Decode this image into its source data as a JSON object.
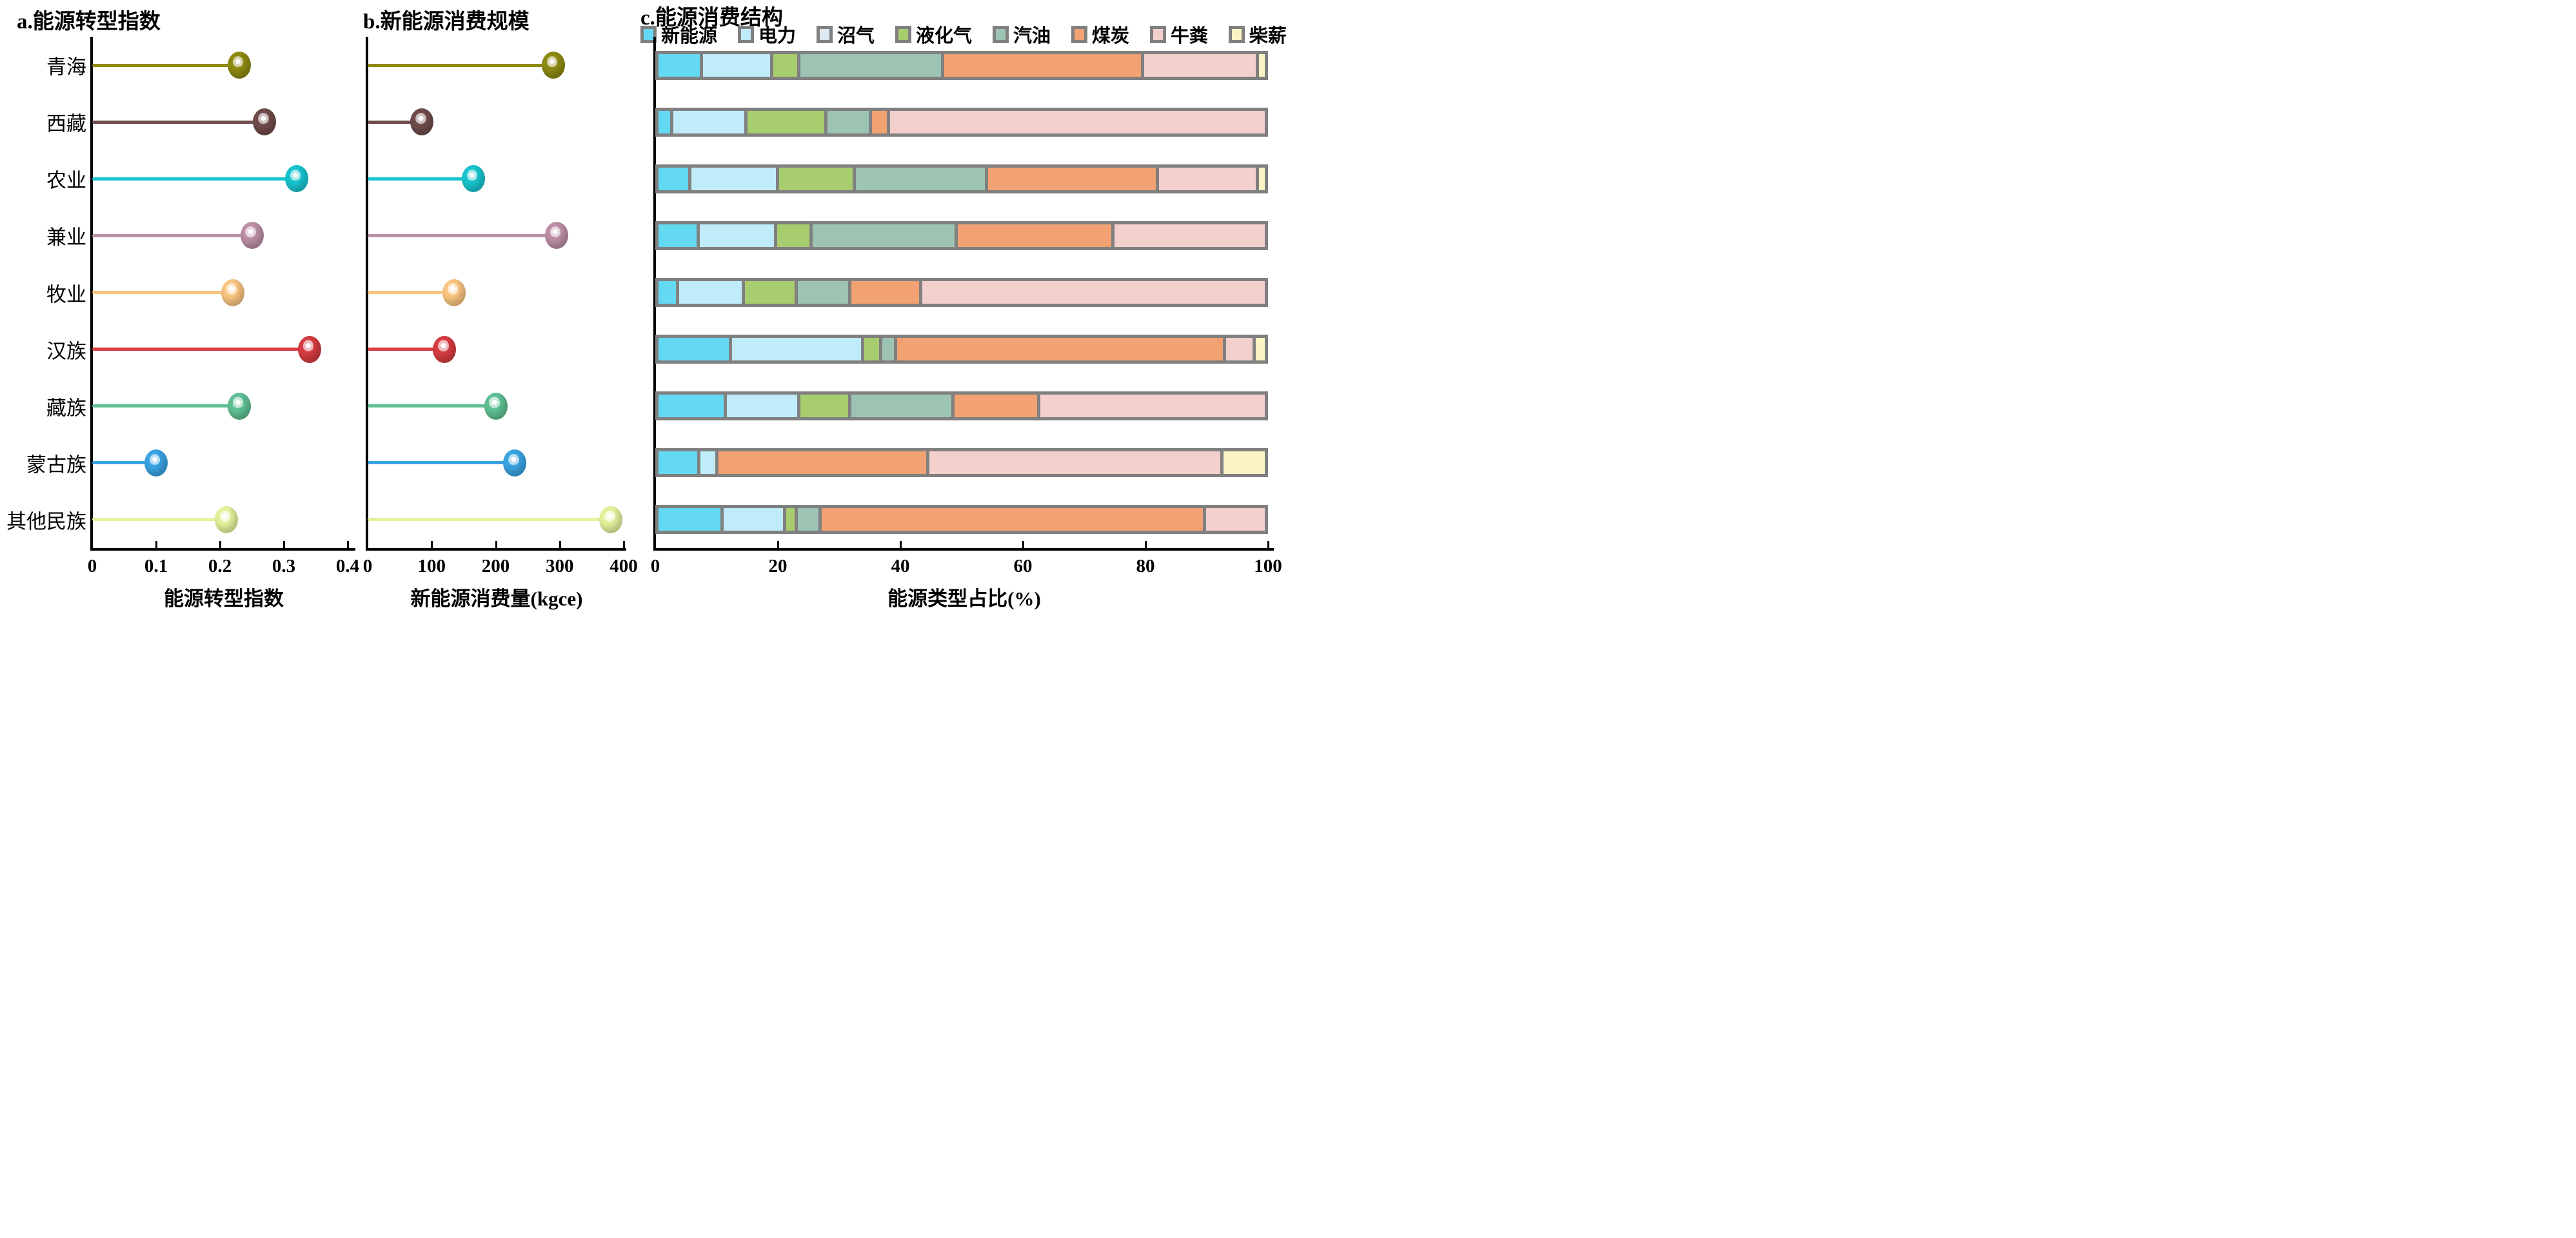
{
  "figure": {
    "background": "#ffffff",
    "axis_color": "#000000",
    "bar_border_color": "#808080"
  },
  "categories": [
    "青海",
    "西藏",
    "农业",
    "兼业",
    "牧业",
    "汉族",
    "藏族",
    "蒙古族",
    "其他民族"
  ],
  "panel_a": {
    "title": "a.能源转型指数",
    "xlabel": "能源转型指数",
    "tick_labels": [
      "0",
      "0.1",
      "0.2",
      "0.3",
      "0.4"
    ]
  },
  "panel_b": {
    "title": "b.新能源消费规模",
    "xlabel": "新能源消费量(kgce)",
    "tick_labels": [
      "0",
      "100",
      "200",
      "300",
      "400"
    ]
  },
  "panel_c": {
    "title": "c.能源消费结构",
    "xlabel": "能源类型占比(%)",
    "tick_labels": [
      "0",
      "20",
      "40",
      "60",
      "80",
      "100"
    ],
    "legend_labels": [
      "新能源",
      "电力",
      "沼气",
      "液化气",
      "汽油",
      "煤炭",
      "牛粪",
      "柴薪"
    ],
    "legend_colors": [
      "#63d9f2",
      "#c0ecfa",
      "#dfe9f1",
      "#a8cd6e",
      "#9dc4b2",
      "#f2a172",
      "#f4d0cd",
      "#faf3c4"
    ]
  },
  "chart_data": [
    {
      "id": "a",
      "type": "scatter",
      "subtype": "lollipop",
      "title": "a.能源转型指数",
      "xlabel": "能源转型指数",
      "xlim": [
        0,
        0.4
      ],
      "xticks": [
        0,
        0.1,
        0.2,
        0.3,
        0.4
      ],
      "categories": [
        "青海",
        "西藏",
        "农业",
        "兼业",
        "牧业",
        "汉族",
        "藏族",
        "蒙古族",
        "其他民族"
      ],
      "values": [
        0.23,
        0.27,
        0.32,
        0.25,
        0.22,
        0.34,
        0.23,
        0.1,
        0.21
      ],
      "colors": [
        "#8f8a12",
        "#6f4b4b",
        "#18c5cf",
        "#bd8fa6",
        "#f9c581",
        "#d63c41",
        "#5fc094",
        "#3aa3e2",
        "#e4f29c"
      ]
    },
    {
      "id": "b",
      "type": "scatter",
      "subtype": "lollipop",
      "title": "b.新能源消费规模",
      "xlabel": "新能源消费量(kgce)",
      "xlim": [
        0,
        400
      ],
      "xticks": [
        0,
        100,
        200,
        300,
        400
      ],
      "categories": [
        "青海",
        "西藏",
        "农业",
        "兼业",
        "牧业",
        "汉族",
        "藏族",
        "蒙古族",
        "其他民族"
      ],
      "values": [
        290,
        85,
        165,
        295,
        135,
        120,
        200,
        230,
        380
      ],
      "colors": [
        "#8f8a12",
        "#6f4b4b",
        "#18c5cf",
        "#bd8fa6",
        "#f9c581",
        "#d63c41",
        "#5fc094",
        "#3aa3e2",
        "#e4f29c"
      ]
    },
    {
      "id": "c",
      "type": "bar",
      "subtype": "stacked-horizontal",
      "title": "c.能源消费结构",
      "xlabel": "能源类型占比(%)",
      "xlim": [
        0,
        100
      ],
      "xticks": [
        0,
        20,
        40,
        60,
        80,
        100
      ],
      "categories": [
        "青海",
        "西藏",
        "农业",
        "兼业",
        "牧业",
        "汉族",
        "藏族",
        "蒙古族",
        "其他民族"
      ],
      "series_names": [
        "新能源",
        "电力",
        "沼气",
        "液化气",
        "汽油",
        "煤炭",
        "牛粪",
        "柴薪"
      ],
      "series_colors": [
        "#63d9f2",
        "#c0ecfa",
        "#dfe9f1",
        "#a8cd6e",
        "#9dc4b2",
        "#f2a172",
        "#f4d0cd",
        "#faf3c4"
      ],
      "rows_percent": [
        [
          7,
          11.5,
          0,
          4,
          24,
          33.5,
          19,
          1
        ],
        [
          2,
          12,
          0,
          13,
          7,
          2.5,
          63.5,
          0
        ],
        [
          5,
          14.5,
          0,
          12.5,
          22,
          28.5,
          16.5,
          1
        ],
        [
          6.5,
          12.5,
          0,
          5.5,
          24,
          26,
          25.5,
          0
        ],
        [
          3,
          10.5,
          0,
          8.5,
          8.5,
          11.5,
          58,
          0
        ],
        [
          12,
          22,
          0,
          2.5,
          2,
          55.5,
          4.5,
          1.5
        ],
        [
          11,
          12,
          0,
          8,
          17,
          14,
          38,
          0
        ],
        [
          6.5,
          2.5,
          0,
          0,
          0,
          35,
          49,
          7
        ],
        [
          10.5,
          10,
          0,
          1.5,
          3.5,
          64.5,
          10,
          0
        ]
      ]
    }
  ]
}
